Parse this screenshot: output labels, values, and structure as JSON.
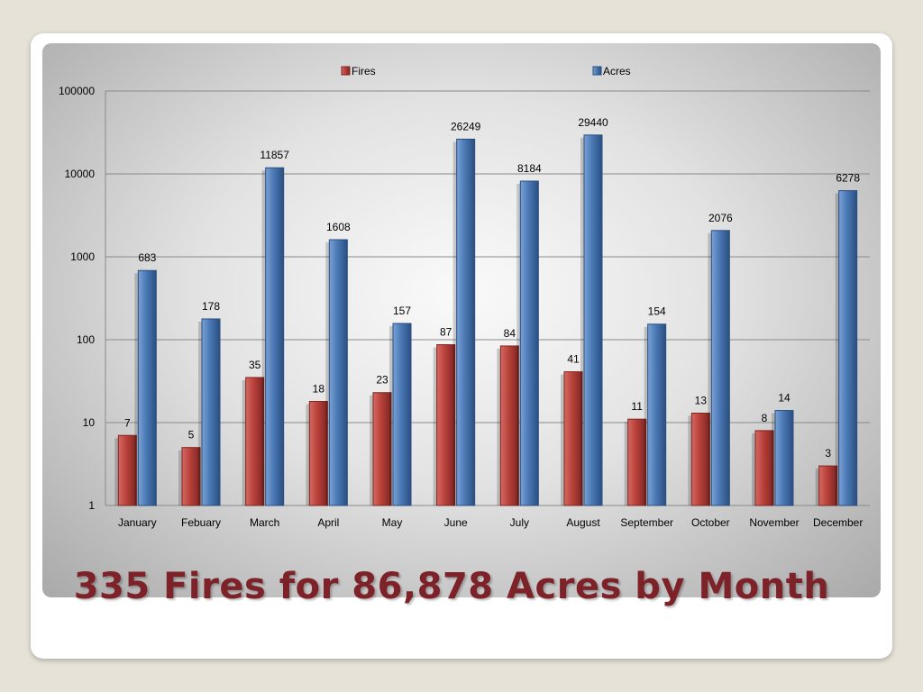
{
  "slide": {
    "title": "335 Fires for 86,878 Acres by Month"
  },
  "colors": {
    "fires": "#b8403a",
    "fires_dark": "#7e2622",
    "acres": "#4a78b4",
    "acres_dark": "#2a4f80",
    "title": "#7d2228"
  },
  "chart_data": {
    "type": "bar",
    "scale": "log10",
    "ylim": [
      1,
      100000
    ],
    "y_ticks": [
      "1",
      "10",
      "100",
      "1000",
      "10000",
      "100000"
    ],
    "legend_position": "top",
    "grid": true,
    "categories": [
      "January",
      "Febuary",
      "March",
      "April",
      "May",
      "June",
      "July",
      "August",
      "September",
      "October",
      "November",
      "December"
    ],
    "series": [
      {
        "name": "Fires",
        "values": [
          7,
          5,
          35,
          18,
          23,
          87,
          84,
          41,
          11,
          13,
          8,
          3
        ]
      },
      {
        "name": "Acres",
        "values": [
          683,
          178,
          11857,
          1608,
          157,
          26249,
          8184,
          29440,
          154,
          2076,
          14,
          6278
        ]
      }
    ]
  }
}
